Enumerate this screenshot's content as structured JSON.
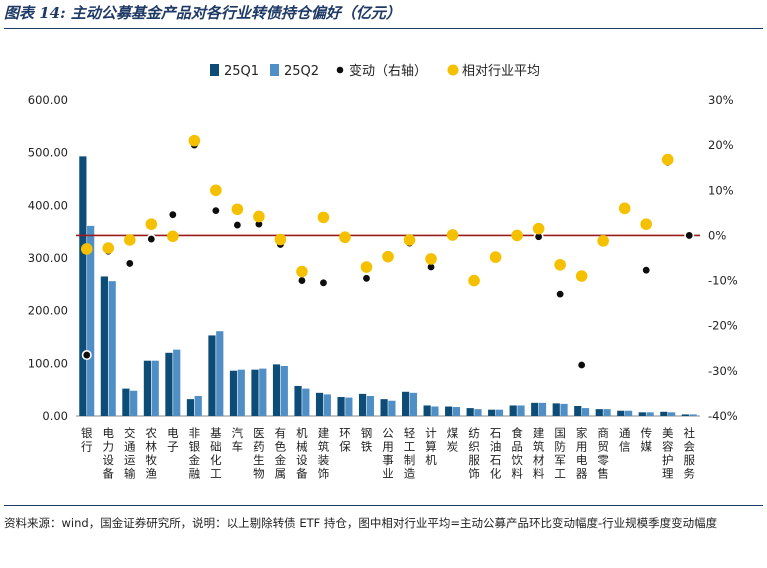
{
  "title": "图表 14: 主动公募基金产品对各行业转债持仓偏好（亿元）",
  "source": "资料来源：wind，国金证券研究所，说明：以上剔除转债 ETF 持仓，图中相对行业平均=主动公募产品环比变动幅度-行业规模季度变动幅度",
  "colors": {
    "q1": "#0d4c77",
    "q2": "#4f8fc6",
    "change": "#0d0d0d",
    "relative": "#f5c000",
    "zero_line": "#9a1b1b"
  },
  "chart_data": {
    "type": "bar+scatter",
    "title": "主动公募基金产品对各行业转债持仓偏好（亿元）",
    "categories": [
      "银行",
      "电力设备",
      "交通运输",
      "农林牧渔",
      "电子",
      "非银金融",
      "基础化工",
      "汽车",
      "医药生物",
      "有色金属",
      "机械设备",
      "建筑装饰",
      "环保",
      "钢铁",
      "公用事业",
      "轻工制造",
      "计算机",
      "煤炭",
      "纺织服饰",
      "石油石化",
      "食品饮料",
      "建筑材料",
      "国防军工",
      "家用电器",
      "商贸零售",
      "通信",
      "传媒",
      "美容护理",
      "社会服务"
    ],
    "series": [
      {
        "name": "25Q1",
        "kind": "bar",
        "axis": "left",
        "values": [
          493,
          265,
          52,
          105,
          120,
          32,
          153,
          86,
          88,
          98,
          57,
          44,
          36,
          42,
          32,
          46,
          20,
          18,
          15,
          12,
          20,
          25,
          24,
          19,
          13,
          10,
          7,
          8,
          3
        ]
      },
      {
        "name": "25Q2",
        "kind": "bar",
        "axis": "left",
        "values": [
          361,
          256,
          48,
          105,
          126,
          38,
          161,
          88,
          90,
          95,
          52,
          41,
          35,
          38,
          29,
          44,
          18,
          17,
          13,
          12,
          20,
          25,
          23,
          15,
          13,
          10,
          7,
          7,
          3
        ]
      },
      {
        "name": "变动（右轴）",
        "kind": "scatter",
        "axis": "right",
        "values": [
          -26.5,
          -3.5,
          -6.2,
          -0.8,
          4.6,
          20.0,
          5.5,
          2.3,
          2.5,
          -2.0,
          -10.0,
          -10.5,
          -0.5,
          -9.5,
          -5.0,
          -1.7,
          -7.0,
          0.0,
          -10.0,
          -5.0,
          0.0,
          -0.3,
          -13.0,
          -28.7,
          -1.5,
          6.0,
          -7.7,
          16.2,
          0.0
        ]
      },
      {
        "name": "相对行业平均",
        "kind": "scatter",
        "axis": "right",
        "values": [
          -3.0,
          -2.8,
          -1.0,
          2.5,
          -0.2,
          21.0,
          10.0,
          5.8,
          4.2,
          -0.9,
          -8.0,
          4.0,
          -0.4,
          -7.0,
          -4.7,
          -1.0,
          -5.2,
          0.1,
          -10.0,
          -4.8,
          0.0,
          1.5,
          -6.5,
          -9.0,
          -1.2,
          6.0,
          2.5,
          16.8,
          null
        ]
      }
    ],
    "legend": [
      "25Q1",
      "25Q2",
      "变动（右轴）",
      "相对行业平均"
    ],
    "left_axis": {
      "min": 0,
      "max": 600,
      "step": 100,
      "ticks": [
        "0.00",
        "100.00",
        "200.00",
        "300.00",
        "400.00",
        "500.00",
        "600.00"
      ]
    },
    "right_axis": {
      "min": -40,
      "max": 30,
      "step": 10,
      "ticks": [
        "-40%",
        "-30%",
        "-20%",
        "-10%",
        "0%",
        "10%",
        "20%",
        "30%"
      ]
    },
    "legend_position": "top-center"
  }
}
